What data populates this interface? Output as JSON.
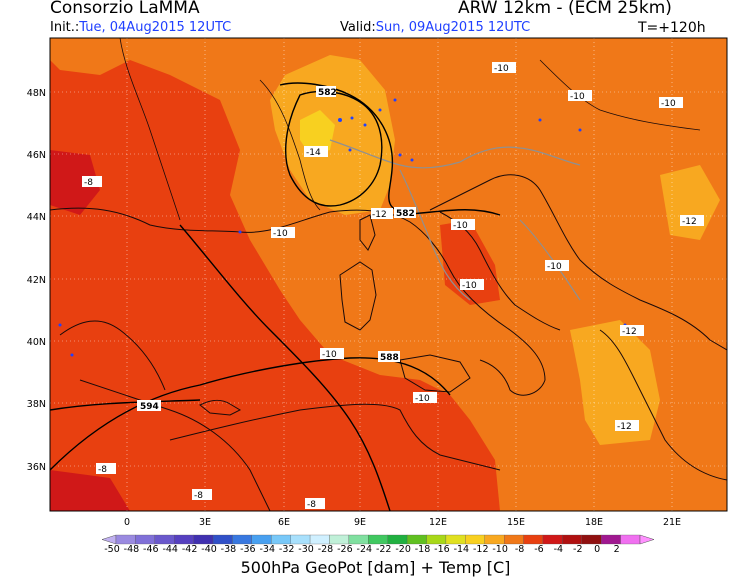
{
  "header": {
    "org": "Consorzio LaMMA",
    "model": "ARW 12km - (ECM 25km)",
    "init_prefix": "Init.:",
    "init_value": "Tue, 04Aug2015 12UTC",
    "valid_prefix": "Valid:",
    "valid_value": "Sun, 09Aug2015 12UTC",
    "lead_time": "T=+120h"
  },
  "map": {
    "lat_labels": [
      "48N",
      "46N",
      "44N",
      "42N",
      "40N",
      "38N",
      "36N"
    ],
    "lon_labels": [
      "0",
      "3E",
      "6E",
      "9E",
      "12E",
      "15E",
      "18E",
      "21E"
    ],
    "geopot_labels": [
      "582",
      "582",
      "588",
      "594"
    ],
    "temp_labels": [
      "-10",
      "-10",
      "-14",
      "-8",
      "-10",
      "-12",
      "-10",
      "-12",
      "-10",
      "-10",
      "-12",
      "-10",
      "-12",
      "-8",
      "-8",
      "-8",
      "-10",
      "-10"
    ]
  },
  "colorbar": {
    "labels": [
      "-50",
      "-48",
      "-46",
      "-44",
      "-42",
      "-40",
      "-38",
      "-36",
      "-34",
      "-32",
      "-30",
      "-28",
      "-26",
      "-24",
      "-22",
      "-20",
      "-18",
      "-16",
      "-14",
      "-12",
      "-10",
      "-8",
      "-6",
      "-4",
      "-2",
      "0",
      "2"
    ],
    "colors": [
      "#9a8ae0",
      "#8070d8",
      "#6a58cc",
      "#5640c0",
      "#4030b0",
      "#3050c8",
      "#3878e0",
      "#48a0f0",
      "#78c8f8",
      "#a8e0fc",
      "#d0f0ff",
      "#c0f0d8",
      "#80e0a0",
      "#40c860",
      "#20b040",
      "#60c020",
      "#a8d818",
      "#e0e020",
      "#f8d020",
      "#f8a820",
      "#f07818",
      "#e84010",
      "#d01818",
      "#b01010",
      "#901010",
      "#a01890",
      "#f070f0"
    ],
    "tri_left": "#c0b0f0",
    "tri_right": "#ff90ff"
  },
  "footer": "500hPa GeoPot [dam] + Temp [C]"
}
